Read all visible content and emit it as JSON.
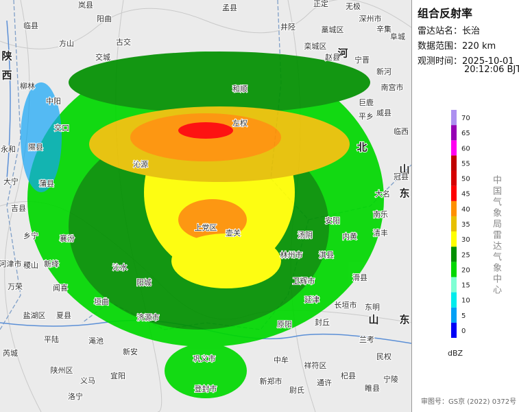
{
  "panel": {
    "title": "组合反射率",
    "station_label": "雷达站名：",
    "station": "长治",
    "range_label": "数据范围：",
    "range": "220 km",
    "time_label": "观测时间：",
    "date": "2025-10-01",
    "time": "20:12:06 BJT"
  },
  "legend": {
    "levels": [
      0,
      5,
      10,
      15,
      20,
      25,
      30,
      35,
      40,
      45,
      50,
      55,
      60,
      65,
      70
    ],
    "colors": [
      "#0000f6",
      "#01a0f6",
      "#00ecec",
      "#7fffd4",
      "#00d800",
      "#019000",
      "#ffff00",
      "#e7c000",
      "#ff9000",
      "#ff0000",
      "#d60000",
      "#c00000",
      "#ff00f0",
      "#9600b4",
      "#ad90f0"
    ],
    "unit": "dBZ",
    "credit": "中国气象局雷达气象中心"
  },
  "footer": "审图号：GS京 (2022) 0372号",
  "provinces": [
    "陕",
    "西",
    "河",
    "北",
    "山",
    "东",
    "山",
    "东"
  ],
  "places": [
    "岚县",
    "孟县",
    "正定",
    "无极",
    "临县",
    "阳曲",
    "方山",
    "古交",
    "交城",
    "井陉",
    "藁城区",
    "深州市",
    "辛集",
    "阜城",
    "宁晋",
    "新河",
    "赵县",
    "栾城区",
    "南宫市",
    "巨鹿",
    "平乡",
    "威县",
    "临西",
    "柳林",
    "中阳",
    "交口",
    "永和",
    "隰县",
    "和顺",
    "左权",
    "沁源",
    "大宁",
    "蒲县",
    "冠县",
    "大名",
    "吉县",
    "乡宁",
    "襄汾",
    "上党区",
    "壶关",
    "安阳",
    "汤阴",
    "内黄",
    "南乐",
    "清丰",
    "河津市",
    "稷山",
    "新绛",
    "沁水",
    "林州市",
    "淇县",
    "万荣",
    "闻喜",
    "阳城",
    "卫辉市",
    "滑县",
    "延津",
    "长垣市",
    "东明",
    "盐湖区",
    "夏县",
    "垣曲",
    "济源市",
    "封丘",
    "原阳",
    "渑池",
    "平陆",
    "兰考",
    "新安",
    "芮城",
    "中牟",
    "民权",
    "巩义市",
    "陕州区",
    "祥符区",
    "宜阳",
    "杞县",
    "义马",
    "新郑市",
    "通许",
    "登封市",
    "尉氏",
    "宁陵",
    "洛宁",
    "睢县"
  ]
}
